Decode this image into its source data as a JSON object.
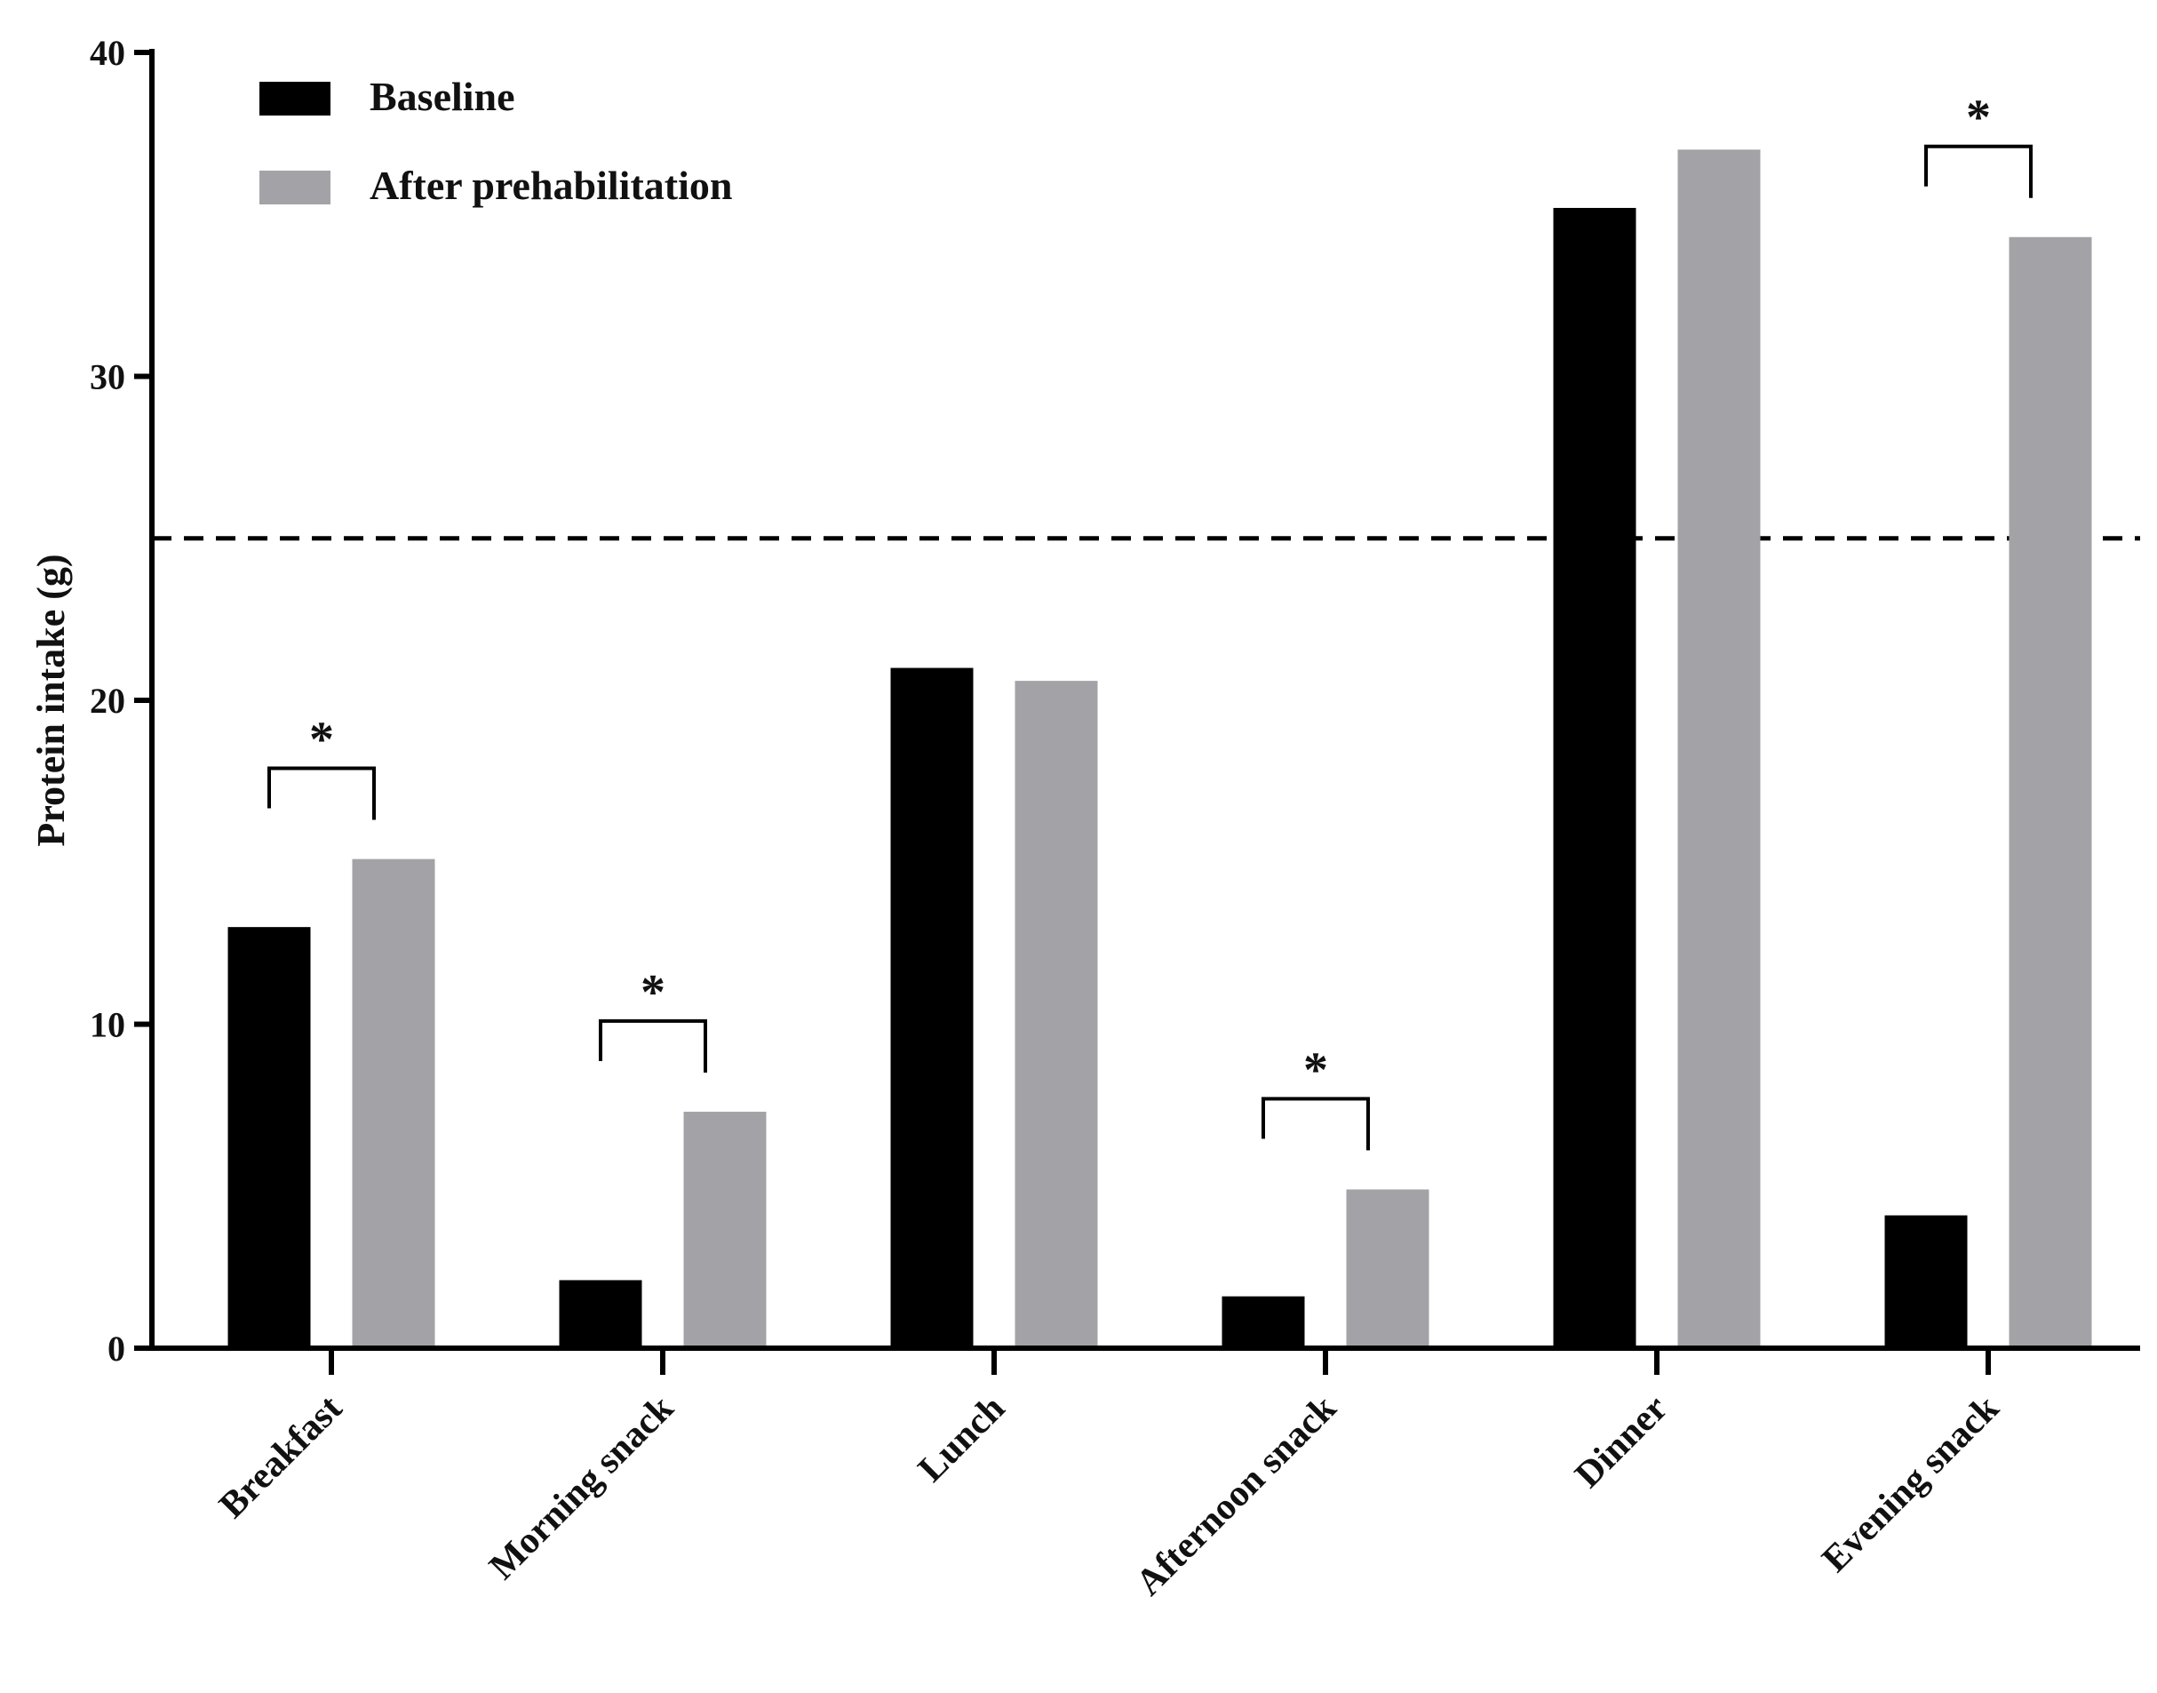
{
  "chart_data": {
    "type": "bar",
    "title": "",
    "xlabel": "",
    "ylabel": "Protein intake (g)",
    "ylim": [
      0,
      40
    ],
    "yticks": [
      0,
      10,
      20,
      30,
      40
    ],
    "categories": [
      "Breakfast",
      "Morning snack",
      "Lunch",
      "Afternoon snack",
      "Dinner",
      "Evening snack"
    ],
    "series": [
      {
        "name": "Baseline",
        "color": "#000000",
        "values": [
          13.0,
          2.1,
          21.0,
          1.6,
          35.2,
          4.1
        ]
      },
      {
        "name": "After prehabilitation",
        "color": "#a3a3a7",
        "values": [
          15.1,
          7.3,
          20.6,
          4.9,
          37.0,
          34.3
        ]
      }
    ],
    "reference_line": {
      "value": 25,
      "style": "dashed",
      "color": "#000000"
    },
    "significance": {
      "marker": "*",
      "categories": [
        "Breakfast",
        "Morning snack",
        "Afternoon snack",
        "Evening snack"
      ]
    },
    "legend": {
      "placement": "top-left"
    },
    "grid": false
  }
}
